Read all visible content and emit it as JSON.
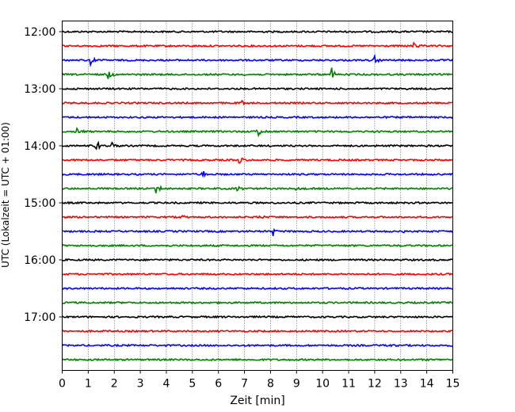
{
  "chart_data": {
    "type": "line",
    "title": "",
    "xlabel": "Zeit  [min]",
    "ylabel": "UTC (Lokalzeit = UTC + 01:00)",
    "xlim": [
      0,
      15
    ],
    "x_ticks": [
      0,
      1,
      2,
      3,
      4,
      5,
      6,
      7,
      8,
      9,
      10,
      11,
      12,
      13,
      14,
      15
    ],
    "x_tick_labels": [
      "0",
      "1",
      "2",
      "3",
      "4",
      "5",
      "6",
      "7",
      "8",
      "9",
      "10",
      "11",
      "12",
      "13",
      "14",
      "15"
    ],
    "y_tick_labels": [
      "12:00",
      "13:00",
      "14:00",
      "15:00",
      "16:00",
      "17:00"
    ],
    "grid": "vertical dotted at each minute",
    "trace_minutes": 15,
    "colors": [
      "#000000",
      "#ff0000",
      "#0000ff",
      "#008000"
    ],
    "traces": [
      {
        "start": "12:00",
        "color": "#000000",
        "events": []
      },
      {
        "start": "12:15",
        "color": "#ff0000",
        "events": [
          {
            "t": 13.5,
            "amp": 6
          }
        ]
      },
      {
        "start": "12:30",
        "color": "#0000ff",
        "events": [
          {
            "t": 1.1,
            "amp": 8
          },
          {
            "t": 12.0,
            "amp": 6
          }
        ]
      },
      {
        "start": "12:45",
        "color": "#008000",
        "events": [
          {
            "t": 1.75,
            "amp": 8
          },
          {
            "t": 10.35,
            "amp": 9
          }
        ]
      },
      {
        "start": "13:00",
        "color": "#000000",
        "events": []
      },
      {
        "start": "13:15",
        "color": "#ff0000",
        "events": [
          {
            "t": 6.9,
            "amp": 4
          }
        ]
      },
      {
        "start": "13:30",
        "color": "#0000ff",
        "events": []
      },
      {
        "start": "13:45",
        "color": "#008000",
        "events": [
          {
            "t": 0.5,
            "amp": 9
          },
          {
            "t": 7.5,
            "amp": 7
          }
        ]
      },
      {
        "start": "14:00",
        "color": "#000000",
        "events": [
          {
            "t": 1.3,
            "amp": 9
          },
          {
            "t": 1.9,
            "amp": 7
          }
        ]
      },
      {
        "start": "14:15",
        "color": "#ff0000",
        "events": [
          {
            "t": 6.8,
            "amp": 5
          }
        ]
      },
      {
        "start": "14:30",
        "color": "#0000ff",
        "events": [
          {
            "t": 5.4,
            "amp": 6
          }
        ]
      },
      {
        "start": "14:45",
        "color": "#008000",
        "events": [
          {
            "t": 3.6,
            "amp": 9
          },
          {
            "t": 6.7,
            "amp": 4
          },
          {
            "t": 9.0,
            "amp": 4
          }
        ]
      },
      {
        "start": "15:00",
        "color": "#000000",
        "events": []
      },
      {
        "start": "15:15",
        "color": "#ff0000",
        "events": [
          {
            "t": 4.5,
            "amp": 4
          },
          {
            "t": 7.6,
            "amp": 3
          }
        ]
      },
      {
        "start": "15:30",
        "color": "#0000ff",
        "events": [
          {
            "t": 8.1,
            "amp": 8
          },
          {
            "t": 13.1,
            "amp": 3
          }
        ]
      },
      {
        "start": "15:45",
        "color": "#008000",
        "events": []
      },
      {
        "start": "16:00",
        "color": "#000000",
        "events": []
      },
      {
        "start": "16:15",
        "color": "#ff0000",
        "events": []
      },
      {
        "start": "16:30",
        "color": "#0000ff",
        "events": []
      },
      {
        "start": "16:45",
        "color": "#008000",
        "events": []
      },
      {
        "start": "17:00",
        "color": "#000000",
        "events": []
      },
      {
        "start": "17:15",
        "color": "#ff0000",
        "events": []
      },
      {
        "start": "17:30",
        "color": "#0000ff",
        "events": [
          {
            "t": 12.5,
            "amp": 3
          }
        ]
      },
      {
        "start": "17:45",
        "color": "#008000",
        "events": []
      }
    ]
  }
}
